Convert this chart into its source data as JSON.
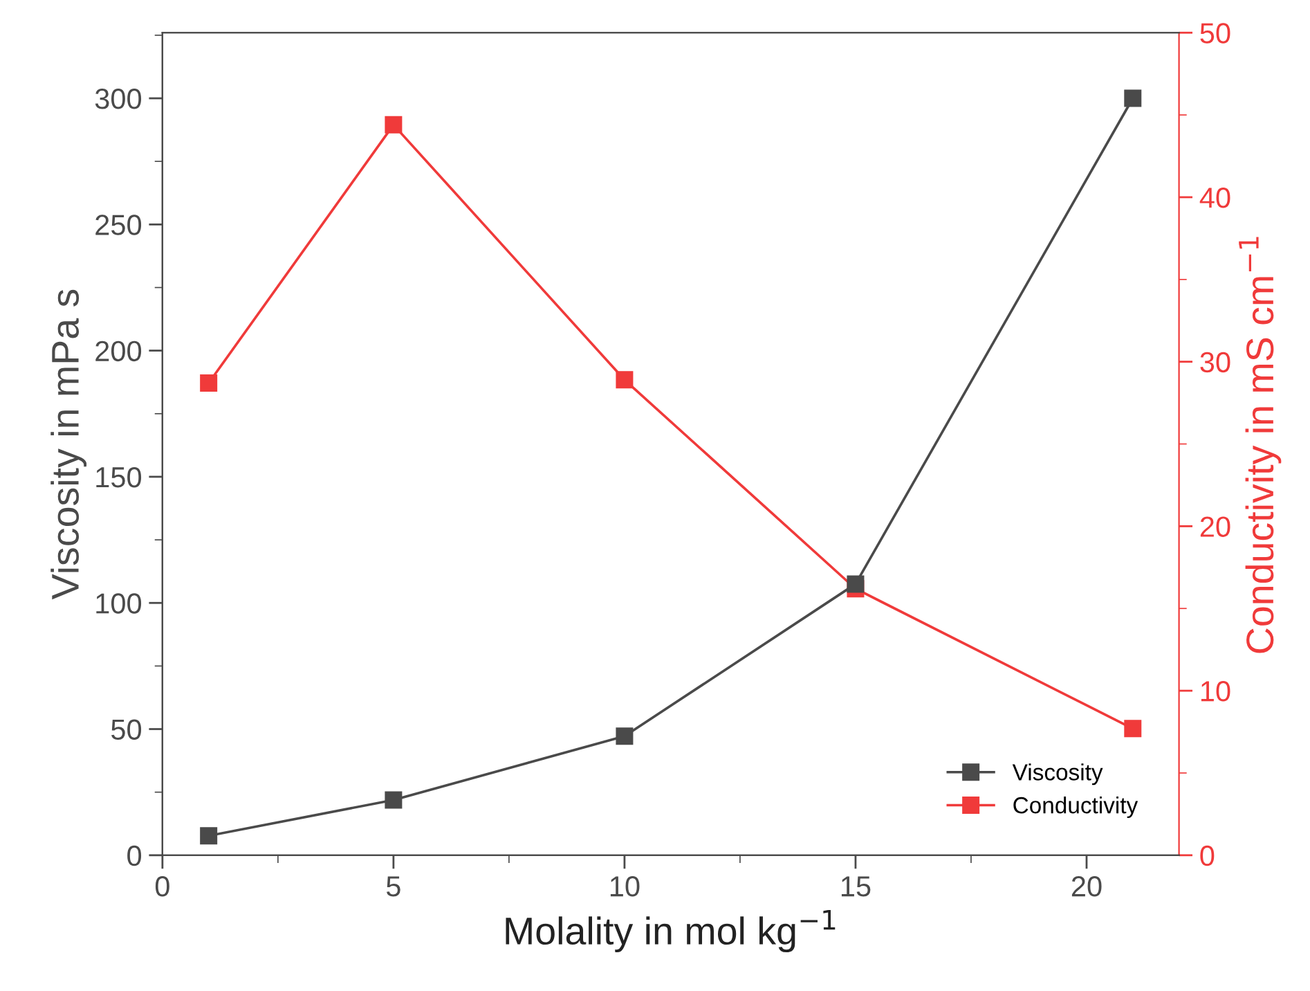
{
  "chart_data": {
    "type": "line",
    "x": [
      1,
      5,
      10,
      15,
      21
    ],
    "xlabel": "Molality in mol kg$^{−1}$",
    "ylabel": "Viscosity in mPa s",
    "y2label": "Conductivity in mS cm$^{−1}$",
    "xlim": [
      0,
      22
    ],
    "xticks": [
      0,
      5,
      10,
      15,
      20
    ],
    "ylim": [
      0,
      326
    ],
    "yticks": [
      0,
      50,
      100,
      150,
      200,
      250,
      300
    ],
    "y2lim": [
      0,
      50
    ],
    "y2ticks": [
      0,
      10,
      20,
      30,
      40,
      50
    ],
    "series": [
      {
        "name": "Viscosity",
        "color": "#4a4a4a",
        "values": [
          7.7,
          21.9,
          47.2,
          107.5,
          300
        ]
      },
      {
        "name": "Conductivity",
        "color": "#f03a3a",
        "axis": "y2",
        "values": [
          28.7,
          44.4,
          28.9,
          16.2,
          7.7
        ]
      }
    ],
    "marker": "square",
    "line_style": "solid",
    "grid": false,
    "legend": "bottom right"
  }
}
